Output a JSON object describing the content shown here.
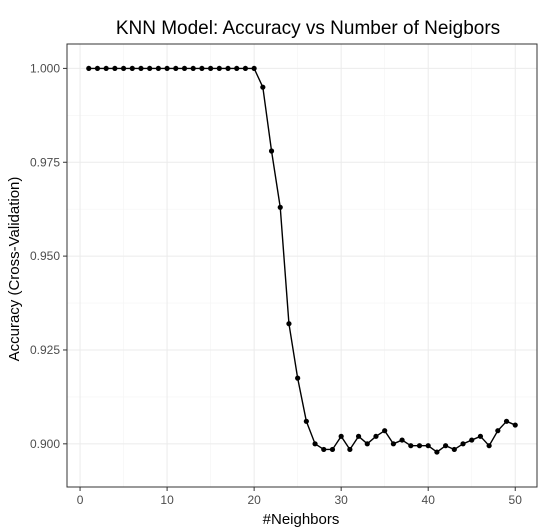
{
  "chart_data": {
    "type": "line",
    "title": "KNN Model: Accuracy vs Number of Neigbors",
    "xlabel": "#Neighbors",
    "ylabel": "Accuracy (Cross-Validation)",
    "xlim": [
      -1.5,
      52.5
    ],
    "ylim": [
      0.8885,
      1.0065
    ],
    "x_ticks": [
      0,
      10,
      20,
      30,
      40,
      50
    ],
    "y_ticks": [
      0.9,
      0.925,
      0.95,
      0.975,
      1.0
    ],
    "y_tick_labels": [
      "0.900",
      "0.925",
      "0.950",
      "0.975",
      "1.000"
    ],
    "grid": true,
    "series": [
      {
        "color": "#000000",
        "x": [
          1,
          2,
          3,
          4,
          5,
          6,
          7,
          8,
          9,
          10,
          11,
          12,
          13,
          14,
          15,
          16,
          17,
          18,
          19,
          20,
          21,
          22,
          23,
          24,
          25,
          26,
          27,
          28,
          29,
          30,
          31,
          32,
          33,
          34,
          35,
          36,
          37,
          38,
          39,
          40,
          41,
          42,
          43,
          44,
          45,
          46,
          47,
          48,
          49,
          50
        ],
        "y": [
          1.0,
          1.0,
          1.0,
          1.0,
          1.0,
          1.0,
          1.0,
          1.0,
          1.0,
          1.0,
          1.0,
          1.0,
          1.0,
          1.0,
          1.0,
          1.0,
          1.0,
          1.0,
          1.0,
          1.0,
          0.995,
          0.978,
          0.963,
          0.932,
          0.9175,
          0.906,
          0.9,
          0.8985,
          0.8985,
          0.902,
          0.8985,
          0.902,
          0.9,
          0.902,
          0.9035,
          0.9,
          0.901,
          0.8995,
          0.8995,
          0.8995,
          0.8978,
          0.8995,
          0.8985,
          0.9,
          0.901,
          0.902,
          0.8995,
          0.9035,
          0.906,
          0.905
        ]
      }
    ]
  }
}
